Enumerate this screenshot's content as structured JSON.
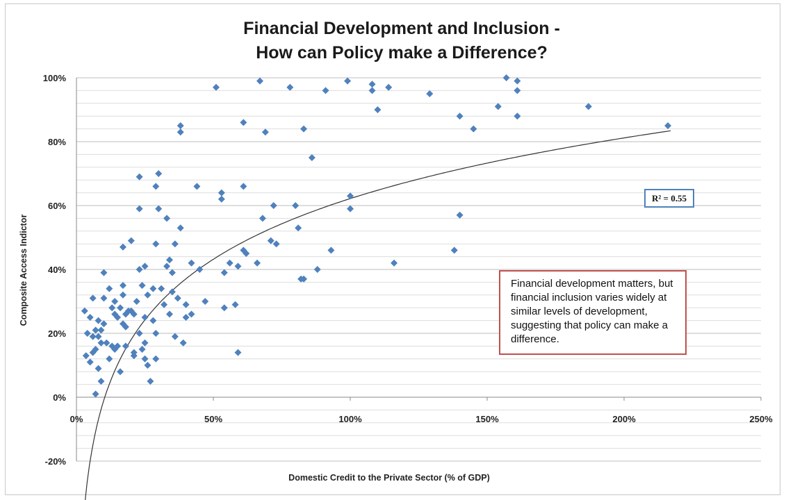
{
  "chart_data": {
    "type": "scatter",
    "title_lines": [
      "Financial Development and Inclusion -",
      "How can Policy make a Difference?"
    ],
    "xlabel": "Domestic Credit to the Private Sector (% of GDP)",
    "ylabel": "Composite Access Indictor",
    "xlim": [
      0,
      250
    ],
    "ylim": [
      -20,
      100
    ],
    "x_ticks": [
      "0%",
      "50%",
      "100%",
      "150%",
      "200%",
      "250%"
    ],
    "y_ticks": [
      "100%",
      "80%",
      "60%",
      "40%",
      "20%",
      "0%",
      "-20%"
    ],
    "grid": true,
    "marker": "diamond",
    "point_color": "#4f81bd",
    "trendline": {
      "type": "logarithmic",
      "r2_label": "R² = 0.55",
      "x_range": [
        3,
        217
      ],
      "a": -64,
      "b": 27.4
    },
    "annotation": "Financial development matters, but financial inclusion varies widely at similar levels of development, suggesting that policy can make a difference.",
    "points": [
      [
        3,
        27
      ],
      [
        3.5,
        13
      ],
      [
        4,
        20
      ],
      [
        5,
        25
      ],
      [
        5,
        11
      ],
      [
        6,
        31
      ],
      [
        6,
        19
      ],
      [
        6,
        14
      ],
      [
        7,
        21
      ],
      [
        7,
        15
      ],
      [
        7,
        1
      ],
      [
        8,
        24
      ],
      [
        8,
        19
      ],
      [
        8,
        9
      ],
      [
        9,
        21
      ],
      [
        9,
        17
      ],
      [
        9,
        5
      ],
      [
        10,
        39
      ],
      [
        10,
        31
      ],
      [
        10,
        23
      ],
      [
        11,
        17
      ],
      [
        12,
        34
      ],
      [
        12,
        12
      ],
      [
        13,
        28
      ],
      [
        13,
        16
      ],
      [
        14,
        30
      ],
      [
        14,
        26
      ],
      [
        14,
        15
      ],
      [
        15,
        25
      ],
      [
        15,
        16
      ],
      [
        16,
        28
      ],
      [
        16,
        8
      ],
      [
        17,
        47
      ],
      [
        17,
        35
      ],
      [
        17,
        32
      ],
      [
        17,
        23
      ],
      [
        18,
        26
      ],
      [
        18,
        22
      ],
      [
        18,
        16
      ],
      [
        19,
        27
      ],
      [
        20,
        49
      ],
      [
        20,
        27
      ],
      [
        21,
        26
      ],
      [
        21,
        14
      ],
      [
        21,
        13
      ],
      [
        22,
        30
      ],
      [
        23,
        59
      ],
      [
        23,
        69
      ],
      [
        23,
        40
      ],
      [
        23,
        20
      ],
      [
        24,
        35
      ],
      [
        24,
        15
      ],
      [
        25,
        41
      ],
      [
        25,
        25
      ],
      [
        25,
        17
      ],
      [
        25,
        12
      ],
      [
        26,
        32
      ],
      [
        26,
        10
      ],
      [
        27,
        5
      ],
      [
        28,
        34
      ],
      [
        28,
        24
      ],
      [
        29,
        66
      ],
      [
        29,
        48
      ],
      [
        29,
        20
      ],
      [
        29,
        12
      ],
      [
        30,
        59
      ],
      [
        30,
        70
      ],
      [
        31,
        34
      ],
      [
        32,
        29
      ],
      [
        33,
        41
      ],
      [
        33,
        56
      ],
      [
        34,
        43
      ],
      [
        34,
        26
      ],
      [
        35,
        39
      ],
      [
        35,
        33
      ],
      [
        36,
        19
      ],
      [
        36,
        48
      ],
      [
        37,
        31
      ],
      [
        38,
        83
      ],
      [
        38,
        85
      ],
      [
        38,
        53
      ],
      [
        39,
        17
      ],
      [
        40,
        25
      ],
      [
        40,
        29
      ],
      [
        42,
        42
      ],
      [
        42,
        26
      ],
      [
        44,
        66
      ],
      [
        45,
        40
      ],
      [
        47,
        30
      ],
      [
        51,
        97
      ],
      [
        53,
        64
      ],
      [
        53,
        62
      ],
      [
        54,
        39
      ],
      [
        54,
        28
      ],
      [
        56,
        42
      ],
      [
        58,
        29
      ],
      [
        59,
        41
      ],
      [
        59,
        14
      ],
      [
        61,
        86
      ],
      [
        61,
        66
      ],
      [
        61,
        46
      ],
      [
        62,
        45
      ],
      [
        66,
        42
      ],
      [
        67,
        99
      ],
      [
        68,
        56
      ],
      [
        69,
        83
      ],
      [
        71,
        49
      ],
      [
        72,
        60
      ],
      [
        73,
        48
      ],
      [
        78,
        97
      ],
      [
        80,
        60
      ],
      [
        81,
        53
      ],
      [
        82,
        37
      ],
      [
        83,
        84
      ],
      [
        83,
        37
      ],
      [
        86,
        75
      ],
      [
        88,
        40
      ],
      [
        91,
        96
      ],
      [
        93,
        46
      ],
      [
        99,
        99
      ],
      [
        100,
        63
      ],
      [
        100,
        59
      ],
      [
        108,
        98
      ],
      [
        108,
        96
      ],
      [
        110,
        90
      ],
      [
        114,
        97
      ],
      [
        116,
        42
      ],
      [
        129,
        95
      ],
      [
        138,
        46
      ],
      [
        140,
        88
      ],
      [
        140,
        57
      ],
      [
        145,
        84
      ],
      [
        154,
        91
      ],
      [
        157,
        100
      ],
      [
        161,
        99
      ],
      [
        161,
        96
      ],
      [
        161,
        88
      ],
      [
        187,
        91
      ],
      [
        216,
        85
      ]
    ]
  }
}
